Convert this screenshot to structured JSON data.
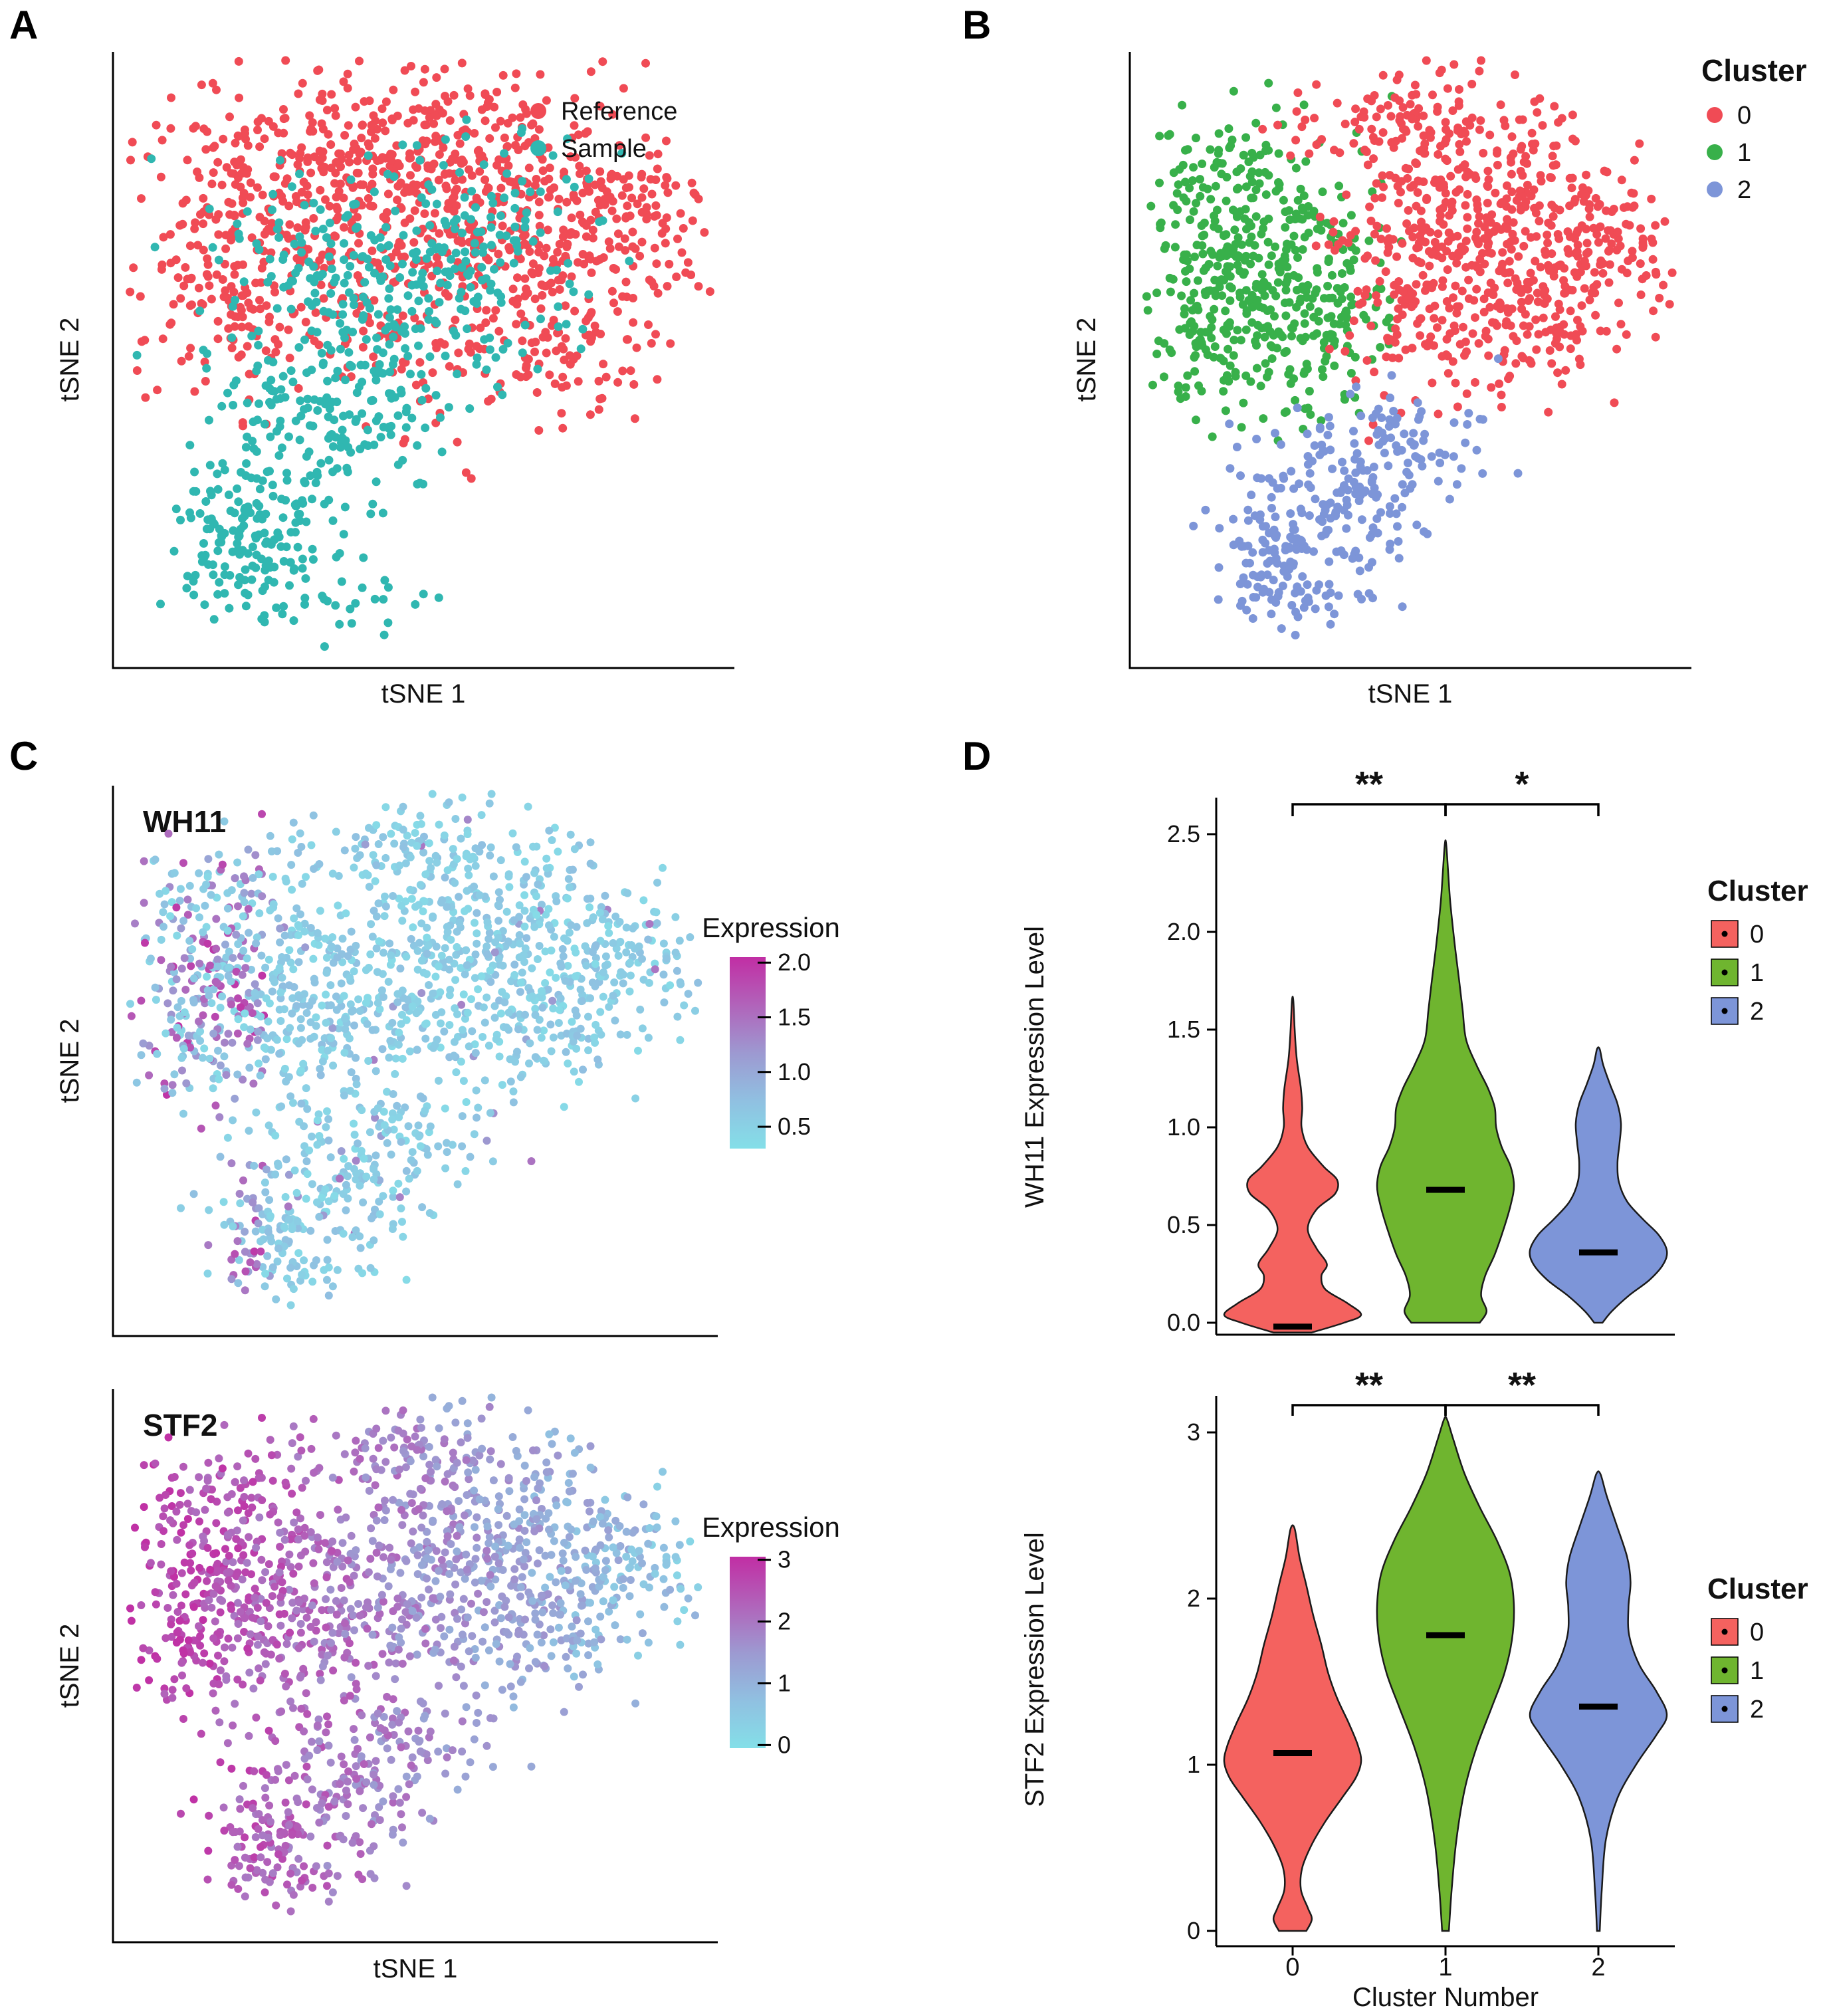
{
  "figure": {
    "background": "#FFFFFF"
  },
  "panels": {
    "A": {
      "label": "A"
    },
    "B": {
      "label": "B"
    },
    "C": {
      "label": "C"
    },
    "D": {
      "label": "D"
    }
  },
  "chart_data": [
    {
      "id": "A",
      "type": "scatter",
      "description": "tSNE embedding colored by dataset origin",
      "xlabel": "tSNE 1",
      "ylabel": "tSNE 2",
      "seed": 11,
      "point_radius": 6.5,
      "series": [
        {
          "name": "Reference",
          "color": "#F04B55",
          "clusters": [
            [
              0.28,
              0.2,
              0.13,
              0.095,
              250
            ],
            [
              0.55,
              0.18,
              0.14,
              0.085,
              250
            ],
            [
              0.74,
              0.32,
              0.11,
              0.1,
              210
            ],
            [
              0.42,
              0.38,
              0.16,
              0.11,
              190
            ],
            [
              0.18,
              0.42,
              0.09,
              0.09,
              110
            ],
            [
              0.68,
              0.5,
              0.1,
              0.07,
              80
            ],
            [
              0.88,
              0.25,
              0.045,
              0.06,
              40
            ]
          ]
        },
        {
          "name": "Sample",
          "color": "#30B7B1",
          "clusters": [
            [
              0.46,
              0.44,
              0.12,
              0.095,
              150
            ],
            [
              0.35,
              0.6,
              0.1,
              0.08,
              150
            ],
            [
              0.21,
              0.8,
              0.065,
              0.07,
              170
            ],
            [
              0.56,
              0.33,
              0.1,
              0.075,
              90
            ],
            [
              0.31,
              0.34,
              0.08,
              0.06,
              60
            ],
            [
              0.52,
              0.22,
              0.17,
              0.07,
              40
            ],
            [
              0.38,
              0.9,
              0.08,
              0.04,
              30
            ]
          ]
        }
      ],
      "legend": {
        "items": [
          {
            "label": "Reference",
            "color": "#F04B55"
          },
          {
            "label": "Sample",
            "color": "#30B7B1"
          }
        ]
      }
    },
    {
      "id": "B",
      "type": "scatter",
      "description": "tSNE embedding colored by cluster",
      "xlabel": "tSNE 1",
      "ylabel": "tSNE 2",
      "seed": 42,
      "point_radius": 6.5,
      "series": [
        {
          "name": "1",
          "color": "#38B04A",
          "clusters": [
            [
              0.19,
              0.3,
              0.105,
              0.1,
              290
            ],
            [
              0.3,
              0.44,
              0.085,
              0.075,
              150
            ],
            [
              0.12,
              0.47,
              0.055,
              0.075,
              80
            ]
          ]
        },
        {
          "name": "0",
          "color": "#F04B55",
          "clusters": [
            [
              0.62,
              0.25,
              0.13,
              0.1,
              330
            ],
            [
              0.76,
              0.4,
              0.095,
              0.085,
              170
            ],
            [
              0.53,
              0.43,
              0.095,
              0.075,
              120
            ],
            [
              0.47,
              0.1,
              0.11,
              0.045,
              80
            ],
            [
              0.88,
              0.3,
              0.05,
              0.07,
              50
            ]
          ]
        },
        {
          "name": "2",
          "color": "#7D95D8",
          "clusters": [
            [
              0.33,
              0.78,
              0.085,
              0.075,
              170
            ],
            [
              0.47,
              0.66,
              0.09,
              0.055,
              90
            ],
            [
              0.24,
              0.88,
              0.05,
              0.045,
              60
            ]
          ]
        }
      ],
      "legend": {
        "title": "Cluster",
        "items": [
          {
            "label": "0",
            "color": "#F04B55"
          },
          {
            "label": "1",
            "color": "#38B04A"
          },
          {
            "label": "2",
            "color": "#7D95D8"
          }
        ]
      }
    },
    {
      "id": "C1",
      "type": "feature-scatter",
      "gene": "WH11",
      "xlabel": "",
      "ylabel": "tSNE 2",
      "seed": 42,
      "seed2": 101,
      "point_radius": 6,
      "clusters": [
        [
          0.19,
          0.3,
          0.105,
          0.1,
          290
        ],
        [
          0.3,
          0.44,
          0.085,
          0.075,
          150
        ],
        [
          0.12,
          0.47,
          0.055,
          0.075,
          80
        ],
        [
          0.62,
          0.25,
          0.13,
          0.1,
          330
        ],
        [
          0.76,
          0.4,
          0.095,
          0.085,
          170
        ],
        [
          0.53,
          0.43,
          0.095,
          0.075,
          120
        ],
        [
          0.47,
          0.1,
          0.11,
          0.045,
          80
        ],
        [
          0.88,
          0.3,
          0.05,
          0.07,
          50
        ],
        [
          0.33,
          0.78,
          0.085,
          0.075,
          170
        ],
        [
          0.47,
          0.66,
          0.09,
          0.055,
          90
        ],
        [
          0.24,
          0.88,
          0.05,
          0.045,
          60
        ]
      ],
      "gradient": [
        "#84DFE8",
        "#90C0E1",
        "#9D99D1",
        "#B163BA",
        "#C12EA4"
      ],
      "domain": [
        0.3,
        2.05
      ],
      "colorbar": {
        "title": "Expression",
        "ticks": [
          {
            "value": 2.0,
            "label": "2.0"
          },
          {
            "value": 1.5,
            "label": "1.5"
          },
          {
            "value": 1.0,
            "label": "1.0"
          },
          {
            "value": 0.5,
            "label": "0.5"
          }
        ]
      },
      "expression_rule": {
        "kind": "hotspot",
        "base_min": 0.35,
        "base_span": 0.4,
        "hot_xmax": 0.24,
        "hot_prob": 0.45,
        "hot_min": 1.0,
        "hot_span": 1.0,
        "stray_prob": 0.04,
        "stray_min": 0.9,
        "stray_span": 0.6
      }
    },
    {
      "id": "C2",
      "type": "feature-scatter",
      "gene": "STF2",
      "xlabel": "tSNE 1",
      "ylabel": "tSNE 2",
      "seed": 42,
      "seed2": 202,
      "point_radius": 6,
      "clusters": [
        [
          0.19,
          0.3,
          0.105,
          0.1,
          290
        ],
        [
          0.3,
          0.44,
          0.085,
          0.075,
          150
        ],
        [
          0.12,
          0.47,
          0.055,
          0.075,
          80
        ],
        [
          0.62,
          0.25,
          0.13,
          0.1,
          330
        ],
        [
          0.76,
          0.4,
          0.095,
          0.085,
          170
        ],
        [
          0.53,
          0.43,
          0.095,
          0.075,
          120
        ],
        [
          0.47,
          0.1,
          0.11,
          0.045,
          80
        ],
        [
          0.88,
          0.3,
          0.05,
          0.07,
          50
        ],
        [
          0.33,
          0.78,
          0.085,
          0.075,
          170
        ],
        [
          0.47,
          0.66,
          0.09,
          0.055,
          90
        ],
        [
          0.24,
          0.88,
          0.05,
          0.045,
          60
        ]
      ],
      "gradient": [
        "#84DFE8",
        "#90C0E1",
        "#9D99D1",
        "#B163BA",
        "#C12EA4"
      ],
      "domain": [
        -0.05,
        3.05
      ],
      "colorbar": {
        "title": "Expression",
        "ticks": [
          {
            "value": 3,
            "label": "3"
          },
          {
            "value": 2,
            "label": "2"
          },
          {
            "value": 1,
            "label": "1"
          },
          {
            "value": 0,
            "label": "0"
          }
        ]
      },
      "expression_rule": {
        "kind": "linear_x",
        "intercept": 2.9,
        "slope": -2.4,
        "noise": 1.0,
        "min": 0.1,
        "max": 3.0
      }
    },
    {
      "id": "D1",
      "type": "violin",
      "ylabel": "WH11 Expression Level",
      "categories": [
        "0",
        "1",
        "2"
      ],
      "colors": [
        "#F4625F",
        "#6FB52F",
        "#7D95D8"
      ],
      "ylim": [
        0,
        2.5
      ],
      "ytick_values": [
        0,
        0.5,
        1,
        1.5,
        2,
        2.5
      ],
      "ytick_labels": [
        "0.0",
        "0.5",
        "1.0",
        "1.5",
        "2.0",
        "2.5"
      ],
      "medians": [
        -0.02,
        0.68,
        0.36
      ],
      "significance": [
        {
          "from": 0,
          "to": 1,
          "label": "**"
        },
        {
          "from": 1,
          "to": 2,
          "label": "*"
        }
      ],
      "legend": {
        "title": "Cluster",
        "items": [
          {
            "label": "0",
            "color": "#F4625F"
          },
          {
            "label": "1",
            "color": "#6FB52F"
          },
          {
            "label": "2",
            "color": "#7D95D8"
          }
        ]
      },
      "profiles": [
        [
          [
            -0.05,
            0.28
          ],
          [
            0.0,
            0.75
          ],
          [
            0.04,
            1.0
          ],
          [
            0.1,
            0.8
          ],
          [
            0.17,
            0.48
          ],
          [
            0.24,
            0.42
          ],
          [
            0.3,
            0.5
          ],
          [
            0.38,
            0.35
          ],
          [
            0.48,
            0.22
          ],
          [
            0.58,
            0.35
          ],
          [
            0.66,
            0.62
          ],
          [
            0.73,
            0.65
          ],
          [
            0.8,
            0.45
          ],
          [
            0.9,
            0.22
          ],
          [
            1.0,
            0.13
          ],
          [
            1.1,
            0.14
          ],
          [
            1.2,
            0.12
          ],
          [
            1.35,
            0.06
          ],
          [
            1.5,
            0.03
          ],
          [
            1.65,
            0.01
          ]
        ],
        [
          [
            0.0,
            0.5
          ],
          [
            0.06,
            0.6
          ],
          [
            0.14,
            0.52
          ],
          [
            0.24,
            0.58
          ],
          [
            0.35,
            0.72
          ],
          [
            0.48,
            0.85
          ],
          [
            0.6,
            0.95
          ],
          [
            0.7,
            1.0
          ],
          [
            0.8,
            0.95
          ],
          [
            0.9,
            0.82
          ],
          [
            1.0,
            0.74
          ],
          [
            1.1,
            0.72
          ],
          [
            1.2,
            0.62
          ],
          [
            1.32,
            0.45
          ],
          [
            1.45,
            0.3
          ],
          [
            1.6,
            0.25
          ],
          [
            1.75,
            0.2
          ],
          [
            1.95,
            0.13
          ],
          [
            2.15,
            0.07
          ],
          [
            2.3,
            0.04
          ],
          [
            2.45,
            0.01
          ]
        ],
        [
          [
            0.0,
            0.06
          ],
          [
            0.06,
            0.2
          ],
          [
            0.14,
            0.45
          ],
          [
            0.22,
            0.75
          ],
          [
            0.3,
            0.95
          ],
          [
            0.37,
            1.0
          ],
          [
            0.45,
            0.88
          ],
          [
            0.53,
            0.65
          ],
          [
            0.62,
            0.42
          ],
          [
            0.72,
            0.3
          ],
          [
            0.82,
            0.28
          ],
          [
            0.92,
            0.31
          ],
          [
            1.02,
            0.33
          ],
          [
            1.12,
            0.28
          ],
          [
            1.22,
            0.17
          ],
          [
            1.32,
            0.07
          ],
          [
            1.4,
            0.02
          ]
        ]
      ]
    },
    {
      "id": "D2",
      "type": "violin",
      "ylabel": "STF2 Expression Level",
      "xlabel": "Cluster Number",
      "categories": [
        "0",
        "1",
        "2"
      ],
      "colors": [
        "#F4625F",
        "#6FB52F",
        "#7D95D8"
      ],
      "ylim": [
        0,
        3
      ],
      "ytick_values": [
        0,
        1,
        2,
        3
      ],
      "ytick_labels": [
        "0",
        "1",
        "2",
        "3"
      ],
      "xtick_labels": [
        "0",
        "1",
        "2"
      ],
      "medians": [
        1.07,
        1.78,
        1.35
      ],
      "significance": [
        {
          "from": 0,
          "to": 1,
          "label": "**"
        },
        {
          "from": 1,
          "to": 2,
          "label": "**"
        }
      ],
      "legend": {
        "title": "Cluster",
        "items": [
          {
            "label": "0",
            "color": "#F4625F"
          },
          {
            "label": "1",
            "color": "#6FB52F"
          },
          {
            "label": "2",
            "color": "#7D95D8"
          }
        ]
      },
      "profiles": [
        [
          [
            0.0,
            0.2
          ],
          [
            0.07,
            0.28
          ],
          [
            0.14,
            0.22
          ],
          [
            0.25,
            0.12
          ],
          [
            0.38,
            0.14
          ],
          [
            0.52,
            0.28
          ],
          [
            0.66,
            0.48
          ],
          [
            0.8,
            0.72
          ],
          [
            0.92,
            0.92
          ],
          [
            1.02,
            1.0
          ],
          [
            1.12,
            0.95
          ],
          [
            1.25,
            0.82
          ],
          [
            1.4,
            0.65
          ],
          [
            1.55,
            0.52
          ],
          [
            1.72,
            0.42
          ],
          [
            1.9,
            0.3
          ],
          [
            2.08,
            0.2
          ],
          [
            2.25,
            0.1
          ],
          [
            2.42,
            0.03
          ]
        ],
        [
          [
            0.0,
            0.05
          ],
          [
            0.25,
            0.09
          ],
          [
            0.55,
            0.16
          ],
          [
            0.85,
            0.28
          ],
          [
            1.1,
            0.45
          ],
          [
            1.35,
            0.68
          ],
          [
            1.55,
            0.86
          ],
          [
            1.75,
            0.97
          ],
          [
            1.95,
            1.0
          ],
          [
            2.15,
            0.94
          ],
          [
            2.35,
            0.75
          ],
          [
            2.55,
            0.5
          ],
          [
            2.75,
            0.28
          ],
          [
            2.95,
            0.12
          ],
          [
            3.08,
            0.02
          ]
        ],
        [
          [
            0.0,
            0.02
          ],
          [
            0.25,
            0.05
          ],
          [
            0.55,
            0.11
          ],
          [
            0.8,
            0.28
          ],
          [
            1.0,
            0.55
          ],
          [
            1.18,
            0.85
          ],
          [
            1.3,
            1.0
          ],
          [
            1.44,
            0.85
          ],
          [
            1.6,
            0.6
          ],
          [
            1.78,
            0.45
          ],
          [
            1.95,
            0.44
          ],
          [
            2.1,
            0.47
          ],
          [
            2.25,
            0.42
          ],
          [
            2.45,
            0.26
          ],
          [
            2.62,
            0.12
          ],
          [
            2.75,
            0.03
          ]
        ]
      ]
    }
  ]
}
